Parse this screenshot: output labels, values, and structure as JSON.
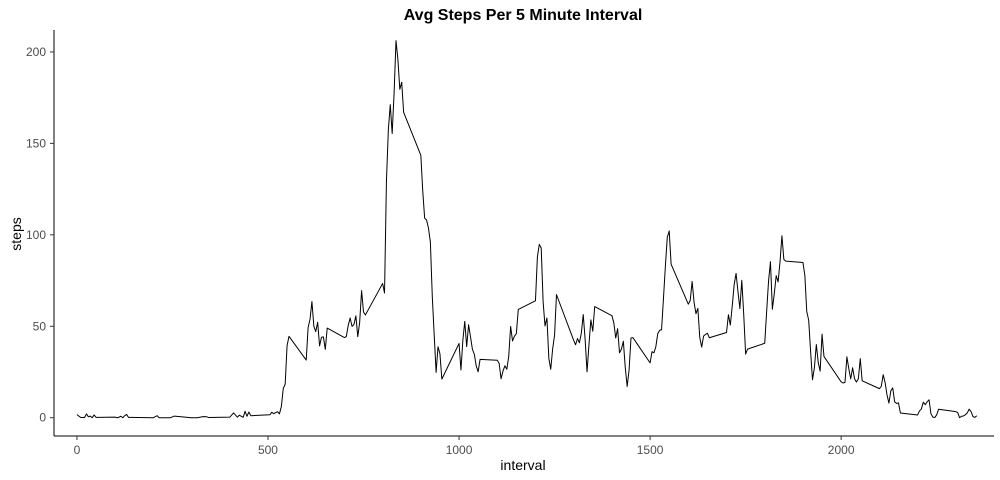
{
  "chart_data": {
    "type": "line",
    "title": "Avg Steps Per 5 Minute Interval",
    "xlabel": "interval",
    "ylabel": "steps",
    "xlim": [
      -60,
      2400
    ],
    "ylim": [
      -10,
      212
    ],
    "x_ticks": [
      0,
      500,
      1000,
      1500,
      2000
    ],
    "y_ticks": [
      0,
      50,
      100,
      150,
      200
    ],
    "x_tick_labels": [
      "0",
      "500",
      "1000",
      "1500",
      "2000"
    ],
    "y_tick_labels": [
      "0",
      "50",
      "100",
      "150",
      "200"
    ],
    "grid": false,
    "legend": "none",
    "series": [
      {
        "color": "#000000",
        "points": [
          [
            0,
            1.7
          ],
          [
            10,
            0.1
          ],
          [
            20,
            0.1
          ],
          [
            25,
            2.1
          ],
          [
            30,
            0.5
          ],
          [
            35,
            0.9
          ],
          [
            40,
            0
          ],
          [
            45,
            1.5
          ],
          [
            50,
            0.2
          ],
          [
            55,
            0.2
          ],
          [
            100,
            0.3
          ],
          [
            105,
            0
          ],
          [
            110,
            0.3
          ],
          [
            115,
            0.8
          ],
          [
            120,
            0
          ],
          [
            125,
            1.1
          ],
          [
            130,
            1.8
          ],
          [
            135,
            0.2
          ],
          [
            140,
            0.2
          ],
          [
            200,
            0
          ],
          [
            210,
            1.1
          ],
          [
            215,
            0
          ],
          [
            220,
            0
          ],
          [
            230,
            0
          ],
          [
            240,
            0
          ],
          [
            245,
            0
          ],
          [
            255,
            0.9
          ],
          [
            300,
            0
          ],
          [
            305,
            0
          ],
          [
            315,
            0
          ],
          [
            330,
            0.6
          ],
          [
            340,
            0.5
          ],
          [
            345,
            0.1
          ],
          [
            400,
            0.3
          ],
          [
            410,
            2.6
          ],
          [
            420,
            0.3
          ],
          [
            425,
            1.4
          ],
          [
            435,
            0.2
          ],
          [
            440,
            3.5
          ],
          [
            445,
            0.8
          ],
          [
            450,
            3.1
          ],
          [
            455,
            1.1
          ],
          [
            505,
            1.6
          ],
          [
            510,
            3
          ],
          [
            515,
            2.2
          ],
          [
            525,
            3.3
          ],
          [
            530,
            2.1
          ],
          [
            535,
            6.1
          ],
          [
            540,
            16
          ],
          [
            545,
            18.3
          ],
          [
            550,
            39.5
          ],
          [
            555,
            44.5
          ],
          [
            600,
            31.5
          ],
          [
            605,
            49.3
          ],
          [
            610,
            53.8
          ],
          [
            615,
            63.5
          ],
          [
            620,
            50
          ],
          [
            625,
            47.1
          ],
          [
            630,
            52.2
          ],
          [
            635,
            39.3
          ],
          [
            640,
            44
          ],
          [
            645,
            44.2
          ],
          [
            650,
            37.4
          ],
          [
            655,
            49
          ],
          [
            700,
            43.8
          ],
          [
            705,
            44.4
          ],
          [
            710,
            50.5
          ],
          [
            715,
            54.5
          ],
          [
            720,
            49.9
          ],
          [
            725,
            51
          ],
          [
            730,
            55.7
          ],
          [
            735,
            44.3
          ],
          [
            740,
            52.3
          ],
          [
            745,
            69.5
          ],
          [
            750,
            57.8
          ],
          [
            755,
            56.2
          ],
          [
            800,
            73.4
          ],
          [
            805,
            68.2
          ],
          [
            810,
            129.4
          ],
          [
            815,
            157.5
          ],
          [
            820,
            171.2
          ],
          [
            825,
            155.4
          ],
          [
            830,
            177.3
          ],
          [
            835,
            206.2
          ],
          [
            840,
            195.9
          ],
          [
            845,
            179.6
          ],
          [
            850,
            183.4
          ],
          [
            855,
            167
          ],
          [
            900,
            143.5
          ],
          [
            905,
            124
          ],
          [
            910,
            109.1
          ],
          [
            915,
            108.1
          ],
          [
            920,
            103.7
          ],
          [
            925,
            95.9
          ],
          [
            930,
            66.2
          ],
          [
            935,
            45.2
          ],
          [
            940,
            24.8
          ],
          [
            945,
            38.8
          ],
          [
            950,
            35
          ],
          [
            955,
            21.1
          ],
          [
            1000,
            40.6
          ],
          [
            1005,
            26.1
          ],
          [
            1010,
            42.4
          ],
          [
            1015,
            52.7
          ],
          [
            1020,
            38.9
          ],
          [
            1025,
            50.8
          ],
          [
            1030,
            44.3
          ],
          [
            1035,
            37.4
          ],
          [
            1040,
            34.7
          ],
          [
            1045,
            28.3
          ],
          [
            1050,
            25.1
          ],
          [
            1055,
            31.9
          ],
          [
            1100,
            31.4
          ],
          [
            1105,
            29.7
          ],
          [
            1110,
            21.3
          ],
          [
            1115,
            25.5
          ],
          [
            1120,
            28.4
          ],
          [
            1125,
            26.5
          ],
          [
            1130,
            33.4
          ],
          [
            1135,
            49.9
          ],
          [
            1140,
            42
          ],
          [
            1145,
            44.6
          ],
          [
            1150,
            46
          ],
          [
            1155,
            59.2
          ],
          [
            1200,
            63.9
          ],
          [
            1205,
            87.7
          ],
          [
            1210,
            94.8
          ],
          [
            1215,
            92.8
          ],
          [
            1220,
            63.4
          ],
          [
            1225,
            50.2
          ],
          [
            1230,
            54.5
          ],
          [
            1235,
            32.4
          ],
          [
            1240,
            26.5
          ],
          [
            1245,
            37.7
          ],
          [
            1250,
            45.1
          ],
          [
            1255,
            67.3
          ],
          [
            1300,
            42.3
          ],
          [
            1305,
            39.9
          ],
          [
            1310,
            43.3
          ],
          [
            1315,
            40.98
          ],
          [
            1320,
            46.2
          ],
          [
            1325,
            56.4
          ],
          [
            1330,
            42.8
          ],
          [
            1335,
            25.1
          ],
          [
            1340,
            39.97
          ],
          [
            1345,
            53.5
          ],
          [
            1350,
            47.3
          ],
          [
            1355,
            60.8
          ],
          [
            1400,
            55.8
          ],
          [
            1405,
            51.96
          ],
          [
            1410,
            43.6
          ],
          [
            1415,
            48.7
          ],
          [
            1420,
            35.5
          ],
          [
            1425,
            37.5
          ],
          [
            1430,
            41.8
          ],
          [
            1435,
            27.5
          ],
          [
            1440,
            17.1
          ],
          [
            1445,
            26.1
          ],
          [
            1450,
            43.6
          ],
          [
            1455,
            43.8
          ],
          [
            1500,
            30
          ],
          [
            1505,
            36.1
          ],
          [
            1510,
            35.5
          ],
          [
            1515,
            38.8
          ],
          [
            1520,
            45.96
          ],
          [
            1525,
            47.8
          ],
          [
            1530,
            48.1
          ],
          [
            1535,
            65.3
          ],
          [
            1540,
            82.9
          ],
          [
            1545,
            98.7
          ],
          [
            1550,
            102.1
          ],
          [
            1555,
            83.96
          ],
          [
            1600,
            62.1
          ],
          [
            1605,
            64.1
          ],
          [
            1610,
            74.5
          ],
          [
            1615,
            63.2
          ],
          [
            1620,
            56.9
          ],
          [
            1625,
            59.8
          ],
          [
            1630,
            43.9
          ],
          [
            1635,
            38.6
          ],
          [
            1640,
            44.7
          ],
          [
            1645,
            45.5
          ],
          [
            1650,
            46.2
          ],
          [
            1655,
            43.7
          ],
          [
            1700,
            46.6
          ],
          [
            1705,
            56.3
          ],
          [
            1710,
            50.7
          ],
          [
            1715,
            61.2
          ],
          [
            1720,
            72.7
          ],
          [
            1725,
            78.9
          ],
          [
            1730,
            68.9
          ],
          [
            1735,
            59.7
          ],
          [
            1740,
            75.1
          ],
          [
            1745,
            56.5
          ],
          [
            1750,
            34.8
          ],
          [
            1755,
            37.5
          ],
          [
            1800,
            40.7
          ],
          [
            1805,
            58
          ],
          [
            1810,
            74.7
          ],
          [
            1815,
            85.3
          ],
          [
            1820,
            59.3
          ],
          [
            1825,
            67.8
          ],
          [
            1830,
            77.7
          ],
          [
            1835,
            74.2
          ],
          [
            1840,
            85.3
          ],
          [
            1845,
            99.5
          ],
          [
            1850,
            86.6
          ],
          [
            1855,
            85.6
          ],
          [
            1900,
            84.9
          ],
          [
            1905,
            77.8
          ],
          [
            1910,
            58
          ],
          [
            1915,
            53.4
          ],
          [
            1920,
            36.3
          ],
          [
            1925,
            20.7
          ],
          [
            1930,
            27.4
          ],
          [
            1935,
            40
          ],
          [
            1940,
            30.2
          ],
          [
            1945,
            25.5
          ],
          [
            1950,
            45.7
          ],
          [
            1955,
            33.5
          ],
          [
            2000,
            19.6
          ],
          [
            2005,
            19
          ],
          [
            2010,
            19.3
          ],
          [
            2015,
            33.3
          ],
          [
            2020,
            26.8
          ],
          [
            2025,
            21.2
          ],
          [
            2030,
            27.3
          ],
          [
            2035,
            21.3
          ],
          [
            2040,
            19.5
          ],
          [
            2045,
            21.3
          ],
          [
            2050,
            32.3
          ],
          [
            2055,
            20.2
          ],
          [
            2100,
            15.9
          ],
          [
            2105,
            17.2
          ],
          [
            2110,
            23.5
          ],
          [
            2115,
            19.2
          ],
          [
            2120,
            12.5
          ],
          [
            2125,
            8
          ],
          [
            2130,
            14.7
          ],
          [
            2135,
            16.3
          ],
          [
            2140,
            8.7
          ],
          [
            2145,
            7.8
          ],
          [
            2150,
            8.1
          ],
          [
            2155,
            2.6
          ],
          [
            2200,
            1.5
          ],
          [
            2205,
            3.7
          ],
          [
            2210,
            4.8
          ],
          [
            2215,
            8.5
          ],
          [
            2220,
            7.1
          ],
          [
            2225,
            8.7
          ],
          [
            2230,
            9.8
          ],
          [
            2235,
            2.2
          ],
          [
            2240,
            0.3
          ],
          [
            2245,
            0.1
          ],
          [
            2250,
            1.6
          ],
          [
            2255,
            4.6
          ],
          [
            2300,
            3.3
          ],
          [
            2305,
            2.8
          ],
          [
            2310,
            0
          ],
          [
            2315,
            0.8
          ],
          [
            2320,
            0.96
          ],
          [
            2325,
            1.6
          ],
          [
            2330,
            2.6
          ],
          [
            2335,
            4.7
          ],
          [
            2340,
            3.3
          ],
          [
            2345,
            0.6
          ],
          [
            2350,
            0.2
          ],
          [
            2355,
            1.1
          ]
        ]
      }
    ]
  }
}
